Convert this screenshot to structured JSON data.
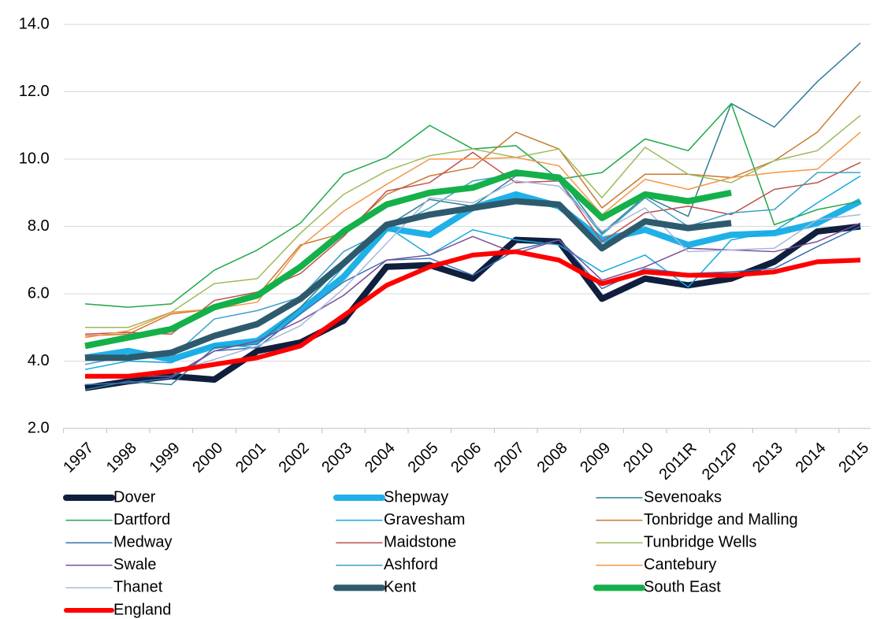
{
  "chart_data": {
    "type": "line",
    "categories": [
      "1997",
      "1998",
      "1999",
      "2000",
      "2001",
      "2002",
      "2003",
      "2004",
      "2005",
      "2006",
      "2007",
      "2008",
      "2009",
      "2010",
      "2011R",
      "2012P",
      "2013",
      "2014",
      "2015"
    ],
    "ylim": [
      2,
      14
    ],
    "yticks": [
      {
        "value": 2,
        "label": "2.0"
      },
      {
        "value": 4,
        "label": "4.0"
      },
      {
        "value": 6,
        "label": "6.0"
      },
      {
        "value": 8,
        "label": "8.0"
      },
      {
        "value": 10,
        "label": "10.0"
      },
      {
        "value": 12,
        "label": "12.0"
      },
      {
        "value": 14,
        "label": "14.0"
      }
    ],
    "grid": true,
    "legend": "bottom",
    "series": [
      {
        "name": "Dover",
        "color": "#0f1f3d",
        "linewidth": 8,
        "values": [
          3.2,
          3.4,
          3.55,
          3.45,
          4.3,
          4.55,
          5.2,
          6.8,
          6.85,
          6.45,
          7.6,
          7.55,
          5.85,
          6.45,
          6.25,
          6.45,
          6.95,
          7.85,
          8.0
        ]
      },
      {
        "name": "Shepway",
        "color": "#1fb0e8",
        "linewidth": 8,
        "values": [
          4.1,
          4.3,
          4.05,
          4.45,
          4.6,
          5.5,
          6.5,
          7.95,
          7.75,
          8.55,
          8.95,
          8.6,
          7.6,
          7.9,
          7.45,
          7.75,
          7.8,
          8.1,
          8.75
        ]
      },
      {
        "name": "Sevenoaks",
        "color": "#2e7f94",
        "linewidth": 1.5,
        "values": [
          3.15,
          3.4,
          3.3,
          4.4,
          4.5,
          5.6,
          6.9,
          8.0,
          8.8,
          8.6,
          9.5,
          9.5,
          7.8,
          8.9,
          8.3,
          11.65,
          10.95,
          12.3,
          13.45
        ]
      },
      {
        "name": "Dartford",
        "color": "#1fa84a",
        "linewidth": 1.5,
        "values": [
          5.7,
          5.6,
          5.7,
          6.7,
          7.3,
          8.1,
          9.55,
          10.05,
          11.0,
          10.3,
          10.4,
          9.4,
          9.6,
          10.6,
          10.25,
          11.65,
          8.05,
          8.5,
          8.75
        ]
      },
      {
        "name": "Gravesham",
        "color": "#13a9e0",
        "linewidth": 1.5,
        "values": [
          3.75,
          4.0,
          3.95,
          4.5,
          4.4,
          5.4,
          6.8,
          8.0,
          7.15,
          7.9,
          7.6,
          7.45,
          6.65,
          7.15,
          6.2,
          7.6,
          7.85,
          8.7,
          9.5
        ]
      },
      {
        "name": "Tonbridge and Malling",
        "color": "#c87a30",
        "linewidth": 1.5,
        "values": [
          4.75,
          4.8,
          5.4,
          5.55,
          5.95,
          7.45,
          7.8,
          8.95,
          9.5,
          9.75,
          10.8,
          10.3,
          8.55,
          9.55,
          9.55,
          9.45,
          9.95,
          10.8,
          12.3
        ]
      },
      {
        "name": "Medway",
        "color": "#3a6fb5",
        "linewidth": 1.5,
        "values": [
          3.3,
          3.35,
          3.5,
          4.3,
          4.4,
          5.4,
          6.35,
          7.0,
          7.05,
          6.55,
          7.3,
          7.6,
          6.15,
          6.75,
          6.6,
          6.65,
          6.75,
          7.4,
          8.0
        ]
      },
      {
        "name": "Maidstone",
        "color": "#c0504d",
        "linewidth": 1.5,
        "values": [
          4.8,
          4.85,
          4.8,
          5.8,
          6.05,
          6.6,
          7.7,
          9.05,
          9.3,
          10.2,
          9.3,
          9.35,
          7.55,
          8.4,
          8.6,
          8.35,
          9.1,
          9.3,
          9.9
        ]
      },
      {
        "name": "Tunbridge Wells",
        "color": "#9bbb59",
        "linewidth": 1.5,
        "values": [
          5.0,
          5.0,
          5.45,
          6.3,
          6.45,
          7.8,
          8.95,
          9.65,
          10.1,
          10.3,
          10.05,
          10.3,
          8.85,
          10.35,
          9.55,
          9.3,
          9.95,
          10.25,
          11.3
        ]
      },
      {
        "name": "Swale",
        "color": "#7a4f9a",
        "linewidth": 1.5,
        "values": [
          3.6,
          3.55,
          3.55,
          4.3,
          4.6,
          5.2,
          5.95,
          7.0,
          7.15,
          7.7,
          7.2,
          7.6,
          6.4,
          6.8,
          7.35,
          7.3,
          7.25,
          7.55,
          8.1
        ]
      },
      {
        "name": "Ashford",
        "color": "#3ca0c8",
        "linewidth": 1.5,
        "values": [
          3.9,
          4.15,
          4.1,
          5.25,
          5.5,
          5.9,
          7.25,
          7.9,
          8.55,
          9.35,
          9.55,
          9.35,
          7.75,
          8.85,
          8.0,
          8.4,
          8.5,
          9.6,
          9.6
        ]
      },
      {
        "name": "Cantebury",
        "color": "#f79646",
        "linewidth": 1.5,
        "values": [
          4.7,
          4.9,
          5.45,
          5.55,
          5.75,
          7.4,
          8.45,
          9.25,
          10.0,
          10.0,
          10.05,
          9.8,
          8.35,
          9.4,
          9.1,
          9.45,
          9.6,
          9.7,
          10.8
        ]
      },
      {
        "name": "Thanet",
        "color": "#a6b8d8",
        "linewidth": 1.5,
        "values": [
          3.5,
          3.5,
          3.65,
          4.05,
          4.45,
          5.05,
          6.15,
          7.5,
          8.85,
          8.7,
          9.35,
          9.2,
          7.85,
          8.55,
          7.25,
          7.3,
          7.35,
          8.2,
          8.35
        ]
      },
      {
        "name": "Kent",
        "color": "#2e5a6e",
        "linewidth": 8,
        "values": [
          4.1,
          4.1,
          4.25,
          4.75,
          5.1,
          5.85,
          6.9,
          8.05,
          8.35,
          8.55,
          8.75,
          8.65,
          7.35,
          8.15,
          7.95,
          8.1,
          null,
          null,
          null
        ]
      },
      {
        "name": "South East",
        "color": "#14b04a",
        "linewidth": 8,
        "values": [
          4.45,
          4.7,
          4.95,
          5.6,
          5.95,
          6.8,
          7.85,
          8.65,
          9.0,
          9.15,
          9.6,
          9.45,
          8.25,
          8.95,
          8.75,
          9.0,
          null,
          null,
          null
        ]
      },
      {
        "name": "England",
        "color": "#ff0000",
        "linewidth": 6,
        "values": [
          3.55,
          3.55,
          3.7,
          3.9,
          4.1,
          4.45,
          5.35,
          6.25,
          6.8,
          7.15,
          7.25,
          7.0,
          6.3,
          6.65,
          6.55,
          6.55,
          6.65,
          6.95,
          7.0
        ]
      }
    ]
  }
}
